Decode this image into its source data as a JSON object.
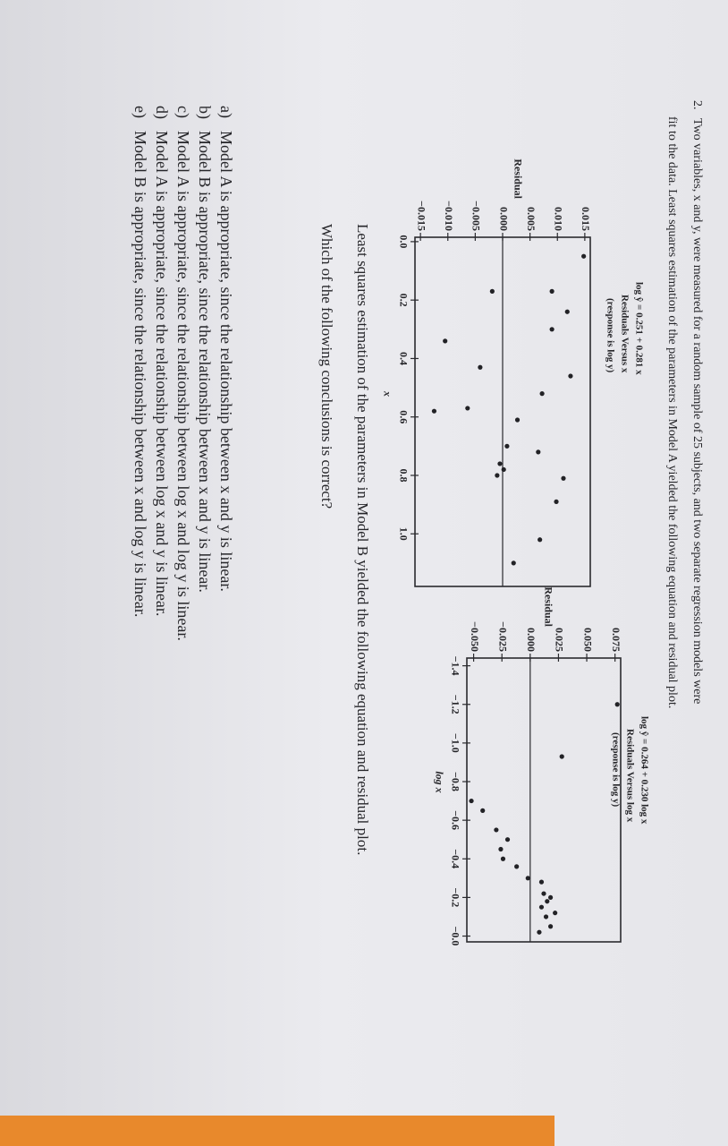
{
  "question": {
    "number": "2.",
    "lines": [
      "Two variables, x and y, were measured for a random sample of 25 subjects, and two separate regression models were",
      "fit to the data. Least squares estimation of the parameters in Model A yielded the following equation and residual plot."
    ]
  },
  "chart_data": [
    {
      "type": "scatter",
      "title": "log ŷ = 0.251 + 0.281 x",
      "subtitle": [
        "Residuals Versus x",
        "(response is log y)"
      ],
      "ylabel": "Residual",
      "xlabel": "x",
      "color": "#222226",
      "x": [
        0.05,
        0.17,
        0.17,
        0.24,
        0.3,
        0.34,
        0.43,
        0.46,
        0.52,
        0.57,
        0.58,
        0.61,
        0.7,
        0.72,
        0.76,
        0.78,
        0.8,
        0.81,
        0.89,
        1.02,
        1.1
      ],
      "values": [
        0.0148,
        0.009,
        -0.0019,
        0.0118,
        0.009,
        -0.0105,
        -0.0041,
        0.0124,
        0.0072,
        -0.0064,
        -0.0125,
        0.0027,
        0.0008,
        0.0065,
        -0.0005,
        0.0002,
        -0.001,
        0.0111,
        0.0098,
        0.0068,
        0.002
      ],
      "xlim": [
        -0.015,
        1.18
      ],
      "ylim": [
        -0.016,
        0.016
      ],
      "xticks": [
        {
          "value": 0,
          "label": "0.0"
        },
        0.2,
        0.4,
        0.6,
        0.8,
        {
          "value": 1,
          "label": "1.0"
        }
      ],
      "yticks": [
        0.015,
        {
          "value": 0.01,
          "label": "0.010"
        },
        0.005,
        {
          "value": 0,
          "label": "0.000"
        },
        {
          "value": -0.005,
          "label": "−0.005"
        },
        {
          "value": -0.01,
          "label": "−0.010"
        },
        {
          "value": -0.015,
          "label": "−0.015"
        }
      ]
    },
    {
      "type": "scatter",
      "title": "log ŷ = 0.264 + 0.230 log x",
      "subtitle": [
        "Residuals Versus log x",
        "(response is log y)"
      ],
      "ylabel": "Residual",
      "xlabel": "log x",
      "color": "#222226",
      "x": [
        -1.2,
        -0.93,
        -0.65,
        -0.7,
        -0.55,
        -0.5,
        -0.45,
        -0.4,
        -0.36,
        -0.3,
        -0.28,
        -0.22,
        -0.2,
        -0.18,
        -0.15,
        -0.12,
        -0.1,
        -0.05,
        -0.02
      ],
      "values": [
        0.077,
        0.028,
        -0.042,
        -0.052,
        -0.03,
        -0.02,
        -0.026,
        -0.024,
        -0.012,
        -0.002,
        0.01,
        0.012,
        0.018,
        0.015,
        0.01,
        0.022,
        0.014,
        0.018,
        0.008
      ],
      "xlim": [
        -1.44,
        0.03
      ],
      "ylim": [
        -0.056,
        0.08
      ],
      "xticks": [
        {
          "value": -1.4,
          "label": "−1.4"
        },
        {
          "value": -1.2,
          "label": "−1.2"
        },
        {
          "value": -1,
          "label": "−1.0"
        },
        {
          "value": -0.8,
          "label": "−0.8"
        },
        {
          "value": -0.6,
          "label": "−0.6"
        },
        {
          "value": -0.4,
          "label": "−0.4"
        },
        {
          "value": -0.2,
          "label": "−0.2"
        },
        {
          "value": 0,
          "label": "−0.0"
        }
      ],
      "yticks": [
        0.075,
        {
          "value": 0.05,
          "label": "0.050"
        },
        0.025,
        {
          "value": 0,
          "label": "0.000"
        },
        {
          "value": -0.025,
          "label": "−0.025"
        },
        {
          "value": -0.05,
          "label": "−0.050"
        }
      ]
    }
  ],
  "model_b_text": "Least squares estimation of the parameters in Model B yielded the following equation and residual plot.",
  "prompt": "Which of the following conclusions is correct?",
  "options": [
    {
      "letter": "a)",
      "text": "Model A is appropriate, since the relationship between x and y is linear."
    },
    {
      "letter": "b)",
      "text": "Model B is appropriate, since the relationship between x and y is linear."
    },
    {
      "letter": "c)",
      "text": "Model A is appropriate, since the relationship between log x and log y is linear."
    },
    {
      "letter": "d)",
      "text": "Model A is appropriate, since the relationship between log x and y is linear."
    },
    {
      "letter": "e)",
      "text": "Model B is appropriate, since the relationship between x and log y is linear."
    }
  ]
}
